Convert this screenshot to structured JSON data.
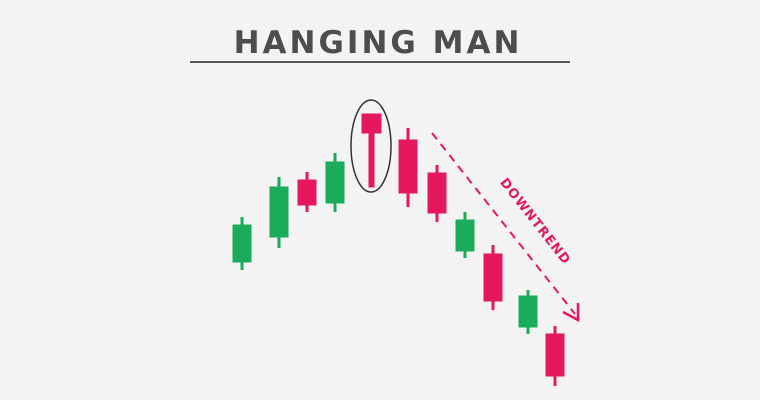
{
  "header": {
    "title": "HANGING MAN"
  },
  "annotation": {
    "label": "DOWNTREND"
  }
}
